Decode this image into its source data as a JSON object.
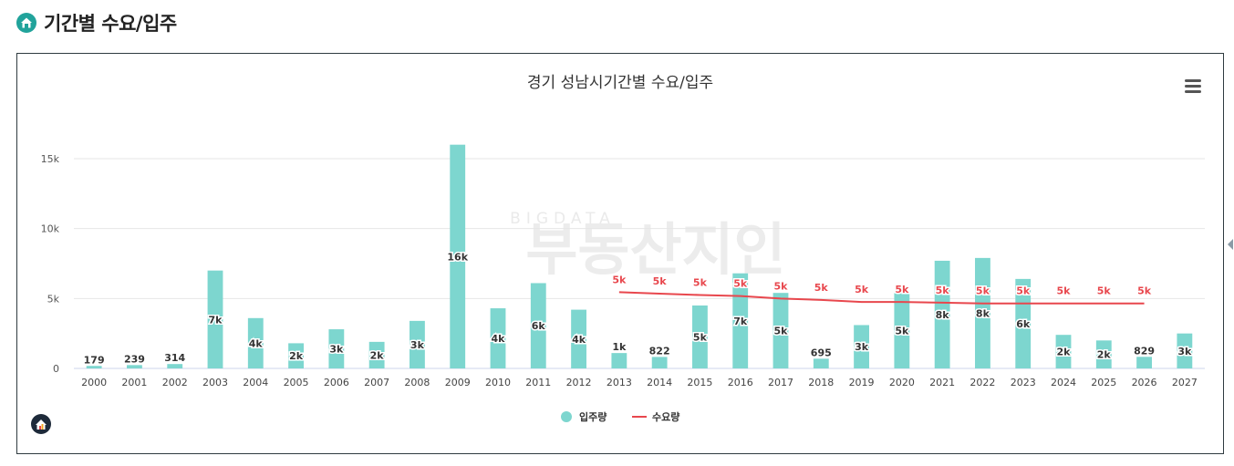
{
  "header": {
    "title": "기간별 수요/입주",
    "icon": "home-badge-icon"
  },
  "chart_data": {
    "type": "bar",
    "title": "경기 성남시기간별 수요/입주",
    "watermark": {
      "sub": "BIGDATA",
      "main": "부동산지인"
    },
    "categories": [
      "2000",
      "2001",
      "2002",
      "2003",
      "2004",
      "2005",
      "2006",
      "2007",
      "2008",
      "2009",
      "2010",
      "2011",
      "2012",
      "2013",
      "2014",
      "2015",
      "2016",
      "2017",
      "2018",
      "2019",
      "2020",
      "2021",
      "2022",
      "2023",
      "2024",
      "2025",
      "2026",
      "2027"
    ],
    "yticks": [
      {
        "value": 0,
        "label": "0"
      },
      {
        "value": 5000,
        "label": "5k"
      },
      {
        "value": 10000,
        "label": "10k"
      },
      {
        "value": 15000,
        "label": "15k"
      }
    ],
    "ylim": [
      0,
      16500
    ],
    "series": [
      {
        "name": "입주량",
        "type": "bar",
        "color": "#7dd6cf",
        "values": [
          179,
          239,
          314,
          7000,
          3600,
          1800,
          2800,
          1900,
          3400,
          16000,
          4300,
          6100,
          4200,
          1100,
          822,
          4500,
          6800,
          5400,
          695,
          3100,
          5400,
          7700,
          7900,
          6400,
          2400,
          2000,
          829,
          2500
        ],
        "labels": [
          "179",
          "239",
          "314",
          "7k",
          "4k",
          "2k",
          "3k",
          "2k",
          "3k",
          "16k",
          "4k",
          "6k",
          "4k",
          "1k",
          "822",
          "5k",
          "7k",
          "5k",
          "695",
          "3k",
          "5k",
          "8k",
          "8k",
          "6k",
          "2k",
          "2k",
          "829",
          "3k"
        ]
      },
      {
        "name": "수요량",
        "type": "line",
        "color": "#e8474d",
        "values": [
          null,
          null,
          null,
          null,
          null,
          null,
          null,
          null,
          null,
          null,
          null,
          null,
          null,
          5450,
          5350,
          5250,
          5180,
          5000,
          4900,
          4750,
          4750,
          4700,
          4650,
          4650,
          4650,
          4650,
          4650,
          null
        ],
        "labels": [
          null,
          null,
          null,
          null,
          null,
          null,
          null,
          null,
          null,
          null,
          null,
          null,
          null,
          "5k",
          "5k",
          "5k",
          "5k",
          "5k",
          "5k",
          "5k",
          "5k",
          "5k",
          "5k",
          "5k",
          "5k",
          "5k",
          "5k",
          null
        ]
      }
    ],
    "legend": [
      {
        "name": "입주량",
        "marker": "circle",
        "color": "#7dd6cf"
      },
      {
        "name": "수요량",
        "marker": "line",
        "color": "#e8474d"
      }
    ]
  }
}
